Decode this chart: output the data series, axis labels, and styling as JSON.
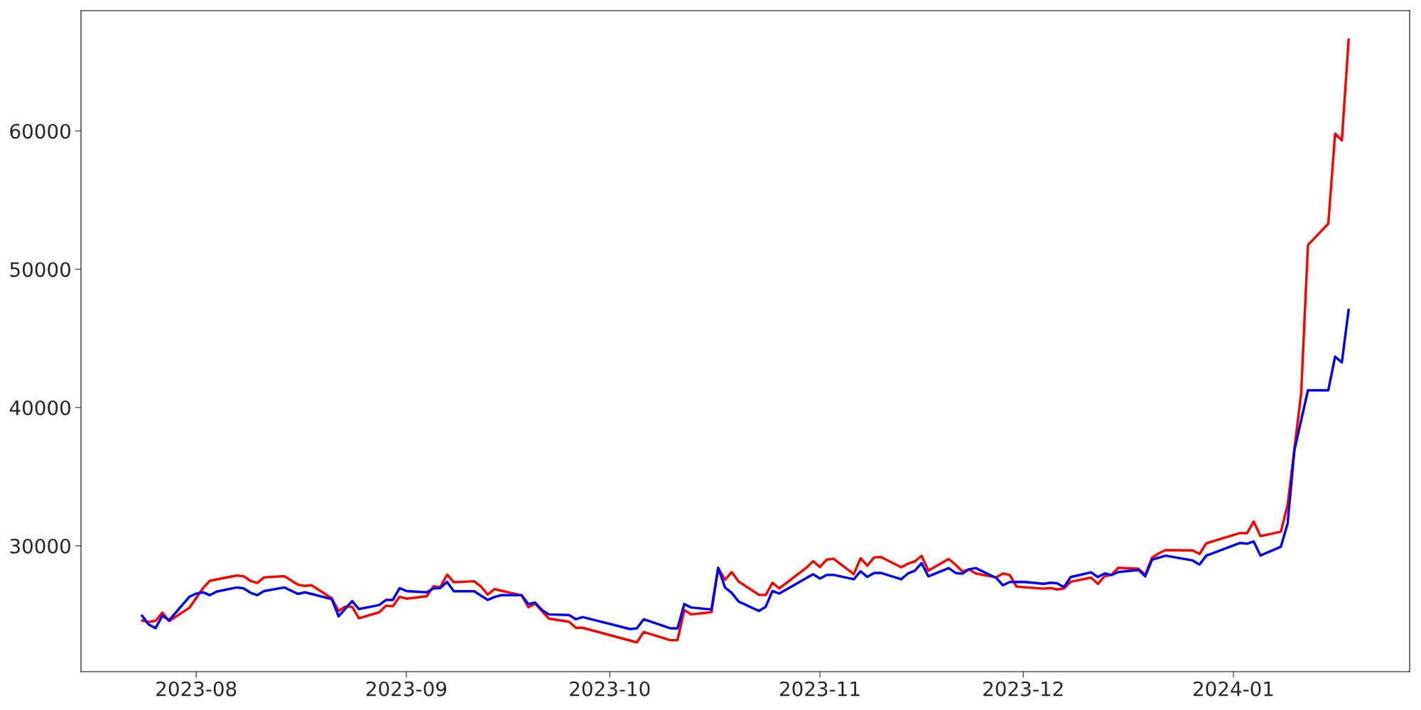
{
  "chart_data": {
    "type": "line",
    "xlim": [
      "2023-07-15",
      "2024-01-27"
    ],
    "ylim": [
      20900,
      68700
    ],
    "xticks": [
      {
        "value": "2023-08-01",
        "label": "2023-08"
      },
      {
        "value": "2023-09-01",
        "label": "2023-09"
      },
      {
        "value": "2023-10-01",
        "label": "2023-10"
      },
      {
        "value": "2023-11-01",
        "label": "2023-11"
      },
      {
        "value": "2023-12-01",
        "label": "2023-12"
      },
      {
        "value": "2024-01-01",
        "label": "2024-01"
      }
    ],
    "yticks": [
      30000,
      40000,
      50000,
      60000
    ],
    "grid": false,
    "marker": "none",
    "line_style": "solid",
    "series": [
      {
        "color": "#ff0000",
        "x": [
          "2023-07-24",
          "2023-07-25",
          "2023-07-26",
          "2023-07-27",
          "2023-07-28",
          "2023-07-31",
          "2023-08-02",
          "2023-08-03",
          "2023-08-07",
          "2023-08-08",
          "2023-08-09",
          "2023-08-10",
          "2023-08-11",
          "2023-08-14",
          "2023-08-16",
          "2023-08-17",
          "2023-08-18",
          "2023-08-21",
          "2023-08-22",
          "2023-08-23",
          "2023-08-24",
          "2023-08-25",
          "2023-08-28",
          "2023-08-29",
          "2023-08-30",
          "2023-08-31",
          "2023-09-01",
          "2023-09-04",
          "2023-09-05",
          "2023-09-06",
          "2023-09-07",
          "2023-09-08",
          "2023-09-11",
          "2023-09-12",
          "2023-09-13",
          "2023-09-14",
          "2023-09-18",
          "2023-09-19",
          "2023-09-20",
          "2023-09-22",
          "2023-09-25",
          "2023-09-26",
          "2023-09-27",
          "2023-10-05",
          "2023-10-06",
          "2023-10-10",
          "2023-10-11",
          "2023-10-12",
          "2023-10-13",
          "2023-10-16",
          "2023-10-17",
          "2023-10-18",
          "2023-10-19",
          "2023-10-20",
          "2023-10-23",
          "2023-10-24",
          "2023-10-25",
          "2023-10-26",
          "2023-10-30",
          "2023-10-31",
          "2023-11-01",
          "2023-11-02",
          "2023-11-03",
          "2023-11-06",
          "2023-11-07",
          "2023-11-08",
          "2023-11-09",
          "2023-11-10",
          "2023-11-13",
          "2023-11-14",
          "2023-11-15",
          "2023-11-16",
          "2023-11-17",
          "2023-11-20",
          "2023-11-21",
          "2023-11-22",
          "2023-11-23",
          "2023-11-24",
          "2023-11-27",
          "2023-11-28",
          "2023-11-29",
          "2023-11-30",
          "2023-12-04",
          "2023-12-05",
          "2023-12-06",
          "2023-12-07",
          "2023-12-08",
          "2023-12-11",
          "2023-12-12",
          "2023-12-13",
          "2023-12-14",
          "2023-12-15",
          "2023-12-18",
          "2023-12-19",
          "2023-12-20",
          "2023-12-21",
          "2023-12-22",
          "2023-12-26",
          "2023-12-27",
          "2023-12-28",
          "2024-01-02",
          "2024-01-03",
          "2024-01-04",
          "2024-01-05",
          "2024-01-08",
          "2024-01-09",
          "2024-01-10",
          "2024-01-11",
          "2024-01-12",
          "2024-01-15",
          "2024-01-16",
          "2024-01-17",
          "2024-01-18"
        ],
        "values": [
          24600,
          24490,
          24580,
          25170,
          24560,
          25520,
          26940,
          27470,
          27860,
          27790,
          27470,
          27310,
          27720,
          27810,
          27190,
          27100,
          27150,
          26200,
          25290,
          25610,
          25590,
          24760,
          25200,
          25680,
          25630,
          26320,
          26180,
          26360,
          27080,
          27000,
          27920,
          27370,
          27440,
          27050,
          26480,
          26870,
          26410,
          25560,
          25820,
          24740,
          24510,
          24070,
          24070,
          23020,
          23770,
          23170,
          23190,
          25360,
          25040,
          25200,
          28390,
          27540,
          28100,
          27420,
          26460,
          26440,
          27330,
          26920,
          28410,
          28890,
          28470,
          29000,
          29070,
          27950,
          29100,
          28570,
          29160,
          29190,
          28450,
          28710,
          28870,
          29280,
          28200,
          29050,
          28640,
          28150,
          28300,
          28000,
          27720,
          28000,
          27890,
          27050,
          26900,
          26950,
          26840,
          26920,
          27400,
          27700,
          27250,
          27800,
          27890,
          28410,
          28340,
          27910,
          29140,
          29460,
          29690,
          29670,
          29410,
          30180,
          30930,
          30910,
          31750,
          30700,
          31020,
          32960,
          37000,
          41060,
          51750,
          53300,
          59800,
          59320,
          66620
        ]
      },
      {
        "color": "#0000ff",
        "x": [
          "2023-07-24",
          "2023-07-25",
          "2023-07-26",
          "2023-07-27",
          "2023-07-28",
          "2023-07-31",
          "2023-08-01",
          "2023-08-02",
          "2023-08-03",
          "2023-08-04",
          "2023-08-07",
          "2023-08-08",
          "2023-08-09",
          "2023-08-10",
          "2023-08-11",
          "2023-08-14",
          "2023-08-16",
          "2023-08-17",
          "2023-08-18",
          "2023-08-21",
          "2023-08-22",
          "2023-08-24",
          "2023-08-25",
          "2023-08-28",
          "2023-08-29",
          "2023-08-30",
          "2023-08-31",
          "2023-09-01",
          "2023-09-04",
          "2023-09-05",
          "2023-09-06",
          "2023-09-07",
          "2023-09-08",
          "2023-09-11",
          "2023-09-13",
          "2023-09-14",
          "2023-09-15",
          "2023-09-18",
          "2023-09-19",
          "2023-09-20",
          "2023-09-21",
          "2023-09-22",
          "2023-09-25",
          "2023-09-26",
          "2023-09-27",
          "2023-10-04",
          "2023-10-05",
          "2023-10-06",
          "2023-10-10",
          "2023-10-11",
          "2023-10-12",
          "2023-10-13",
          "2023-10-16",
          "2023-10-17",
          "2023-10-18",
          "2023-10-19",
          "2023-10-20",
          "2023-10-23",
          "2023-10-24",
          "2023-10-25",
          "2023-10-26",
          "2023-10-31",
          "2023-11-01",
          "2023-11-02",
          "2023-11-03",
          "2023-11-06",
          "2023-11-07",
          "2023-11-08",
          "2023-11-09",
          "2023-11-10",
          "2023-11-13",
          "2023-11-14",
          "2023-11-15",
          "2023-11-16",
          "2023-11-17",
          "2023-11-20",
          "2023-11-21",
          "2023-11-22",
          "2023-11-23",
          "2023-11-24",
          "2023-11-27",
          "2023-11-28",
          "2023-11-29",
          "2023-12-01",
          "2023-12-04",
          "2023-12-05",
          "2023-12-06",
          "2023-12-07",
          "2023-12-08",
          "2023-12-11",
          "2023-12-12",
          "2023-12-13",
          "2023-12-14",
          "2023-12-15",
          "2023-12-18",
          "2023-12-19",
          "2023-12-20",
          "2023-12-22",
          "2023-12-26",
          "2023-12-27",
          "2023-12-28",
          "2024-01-02",
          "2024-01-03",
          "2024-01-04",
          "2024-01-05",
          "2024-01-08",
          "2024-01-09",
          "2024-01-10",
          "2024-01-12",
          "2024-01-15",
          "2024-01-16",
          "2024-01-17",
          "2024-01-18"
        ],
        "values": [
          24950,
          24300,
          24050,
          24950,
          24620,
          26320,
          26550,
          26640,
          26430,
          26690,
          26990,
          26920,
          26610,
          26430,
          26730,
          26990,
          26520,
          26640,
          26520,
          26140,
          24900,
          26000,
          25430,
          25720,
          26090,
          26090,
          26940,
          26730,
          26640,
          26920,
          26940,
          27400,
          26710,
          26710,
          26090,
          26300,
          26430,
          26430,
          25790,
          25890,
          25360,
          25040,
          24990,
          24690,
          24850,
          23980,
          24030,
          24690,
          24030,
          24030,
          25790,
          25540,
          25400,
          28410,
          26990,
          26590,
          25980,
          25290,
          25590,
          26730,
          26550,
          27950,
          27630,
          27900,
          27900,
          27580,
          28160,
          27750,
          28040,
          28040,
          27580,
          28000,
          28200,
          28750,
          27790,
          28390,
          28040,
          27990,
          28300,
          28390,
          27680,
          27150,
          27380,
          27400,
          27250,
          27330,
          27290,
          27010,
          27740,
          28080,
          27740,
          28000,
          27890,
          28100,
          28250,
          27800,
          29000,
          29290,
          28940,
          28640,
          29290,
          30210,
          30150,
          30310,
          29300,
          29930,
          31620,
          36910,
          41250,
          41250,
          43680,
          43260,
          47070
        ]
      }
    ]
  }
}
